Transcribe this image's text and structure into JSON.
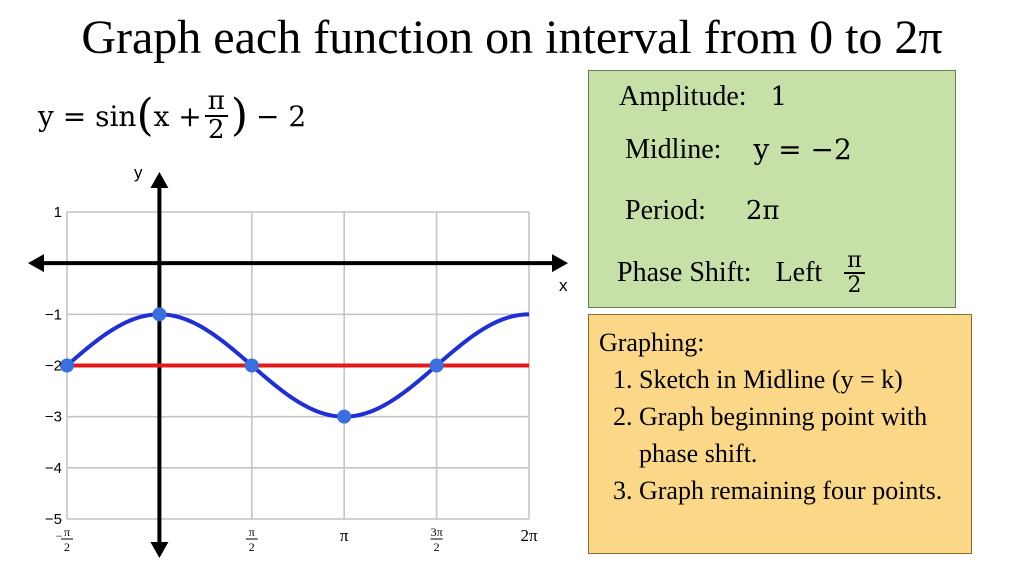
{
  "title": "Graph each function on interval from 0 to 2π",
  "equation": {
    "prefix": "y = sin",
    "inner": "x +",
    "frac_num": "π",
    "frac_den": "2",
    "suffix": "− 2"
  },
  "properties": {
    "amplitude_label": "Amplitude:",
    "amplitude_value": "1",
    "midline_label": "Midline:",
    "midline_value": "y = −2",
    "period_label": "Period:",
    "period_value": "2π",
    "phase_label": "Phase Shift:",
    "phase_direction": "Left",
    "phase_num": "π",
    "phase_den": "2"
  },
  "instructions": {
    "heading": "Graphing:",
    "steps": [
      "Sketch in Midline (y = k)",
      "Graph beginning point with phase shift.",
      "Graph remaining four points."
    ]
  },
  "colors": {
    "curve": "#1f2fd6",
    "midline": "#e3191c",
    "points": "#3b6fe0",
    "green_box": "#c6e0a8",
    "yellow_box": "#fbd888"
  },
  "chart_data": {
    "type": "line",
    "xlabel": "x",
    "ylabel": "y",
    "xlim": [
      -1.5708,
      6.2832
    ],
    "ylim": [
      -5,
      1
    ],
    "grid": true,
    "x_ticks": [
      {
        "value": -1.5708,
        "num": "π",
        "den": "2",
        "sign": "−"
      },
      {
        "value": 1.5708,
        "num": "π",
        "den": "2"
      },
      {
        "value": 3.1416,
        "label": "π"
      },
      {
        "value": 4.7124,
        "num": "3π",
        "den": "2"
      },
      {
        "value": 6.2832,
        "label": "2π"
      }
    ],
    "y_ticks": [
      {
        "value": 1,
        "label": "1"
      },
      {
        "value": -1,
        "label": "−1"
      },
      {
        "value": -2,
        "label": "−2"
      },
      {
        "value": -3,
        "label": "−3"
      },
      {
        "value": -4,
        "label": "−4"
      },
      {
        "value": -5,
        "label": "−5"
      }
    ],
    "series": [
      {
        "function": "sin(x + π/2) − 2",
        "x_range": [
          -1.5708,
          6.2832
        ]
      },
      {
        "function": "y = −2",
        "x_range": [
          -1.5708,
          6.2832
        ]
      }
    ],
    "points": [
      {
        "x": -1.5708,
        "y": -2
      },
      {
        "x": 0,
        "y": -1
      },
      {
        "x": 1.5708,
        "y": -2
      },
      {
        "x": 3.1416,
        "y": -3
      },
      {
        "x": 4.7124,
        "y": -2
      }
    ]
  }
}
